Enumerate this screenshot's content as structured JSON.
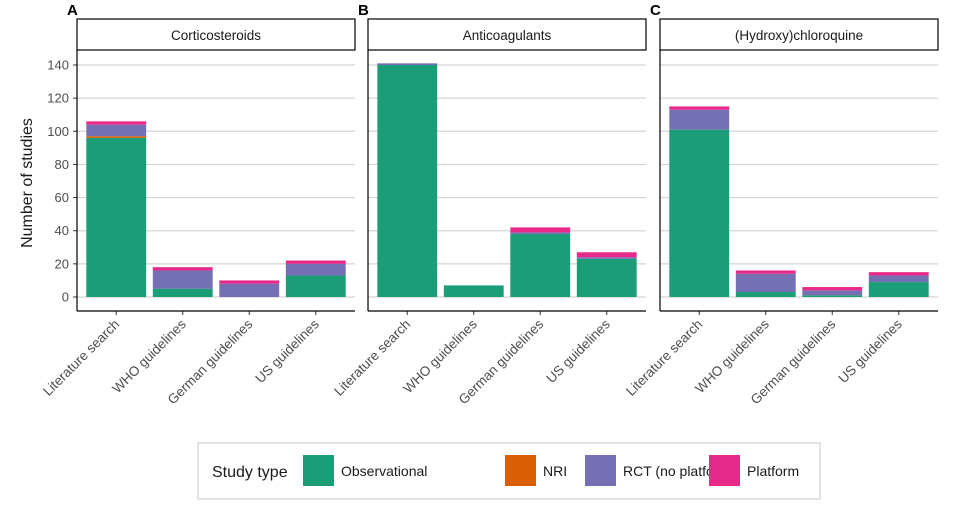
{
  "chart_data": {
    "type": "bar",
    "stacked": true,
    "ylabel": "Number of studies",
    "ylim": [
      0,
      145
    ],
    "yticks": [
      0,
      20,
      40,
      60,
      80,
      100,
      120,
      140
    ],
    "categories": [
      "Literature search",
      "WHO guidelines",
      "German guidelines",
      "US guidelines"
    ],
    "stack_order": [
      "Observational",
      "NRI",
      "RCT (no platform)",
      "Platform"
    ],
    "colors": {
      "Observational": "#1B9E77",
      "NRI": "#D95F02",
      "RCT (no platform)": "#7570B3",
      "Platform": "#E7298A"
    },
    "panels": [
      {
        "tag": "A",
        "title": "Corticosteroids",
        "series": [
          {
            "name": "Platform",
            "values": [
              2,
              2,
              2,
              2
            ]
          },
          {
            "name": "RCT (no platform)",
            "values": [
              7,
              11,
              8,
              7
            ]
          },
          {
            "name": "NRI",
            "values": [
              1,
              0,
              0,
              0
            ]
          },
          {
            "name": "Observational",
            "values": [
              96,
              5,
              0,
              13
            ]
          }
        ]
      },
      {
        "tag": "B",
        "title": "Anticoagulants",
        "series": [
          {
            "name": "Platform",
            "values": [
              0,
              0,
              3,
              3
            ]
          },
          {
            "name": "RCT (no platform)",
            "values": [
              1,
              0,
              1,
              1
            ]
          },
          {
            "name": "NRI",
            "values": [
              0,
              0,
              0,
              0
            ]
          },
          {
            "name": "Observational",
            "values": [
              140,
              7,
              38,
              23
            ]
          }
        ]
      },
      {
        "tag": "C",
        "title": "(Hydroxy)chloroquine",
        "series": [
          {
            "name": "Platform",
            "values": [
              2,
              2,
              2,
              2
            ]
          },
          {
            "name": "RCT (no platform)",
            "values": [
              12,
              11,
              3,
              4
            ]
          },
          {
            "name": "NRI",
            "values": [
              0,
              0,
              0,
              0
            ]
          },
          {
            "name": "Observational",
            "values": [
              101,
              3,
              1,
              9
            ]
          }
        ]
      }
    ],
    "legend": {
      "title": "Study type",
      "placement": "bottom",
      "entries": [
        "Observational",
        "NRI",
        "RCT (no platform)",
        "Platform"
      ]
    }
  }
}
